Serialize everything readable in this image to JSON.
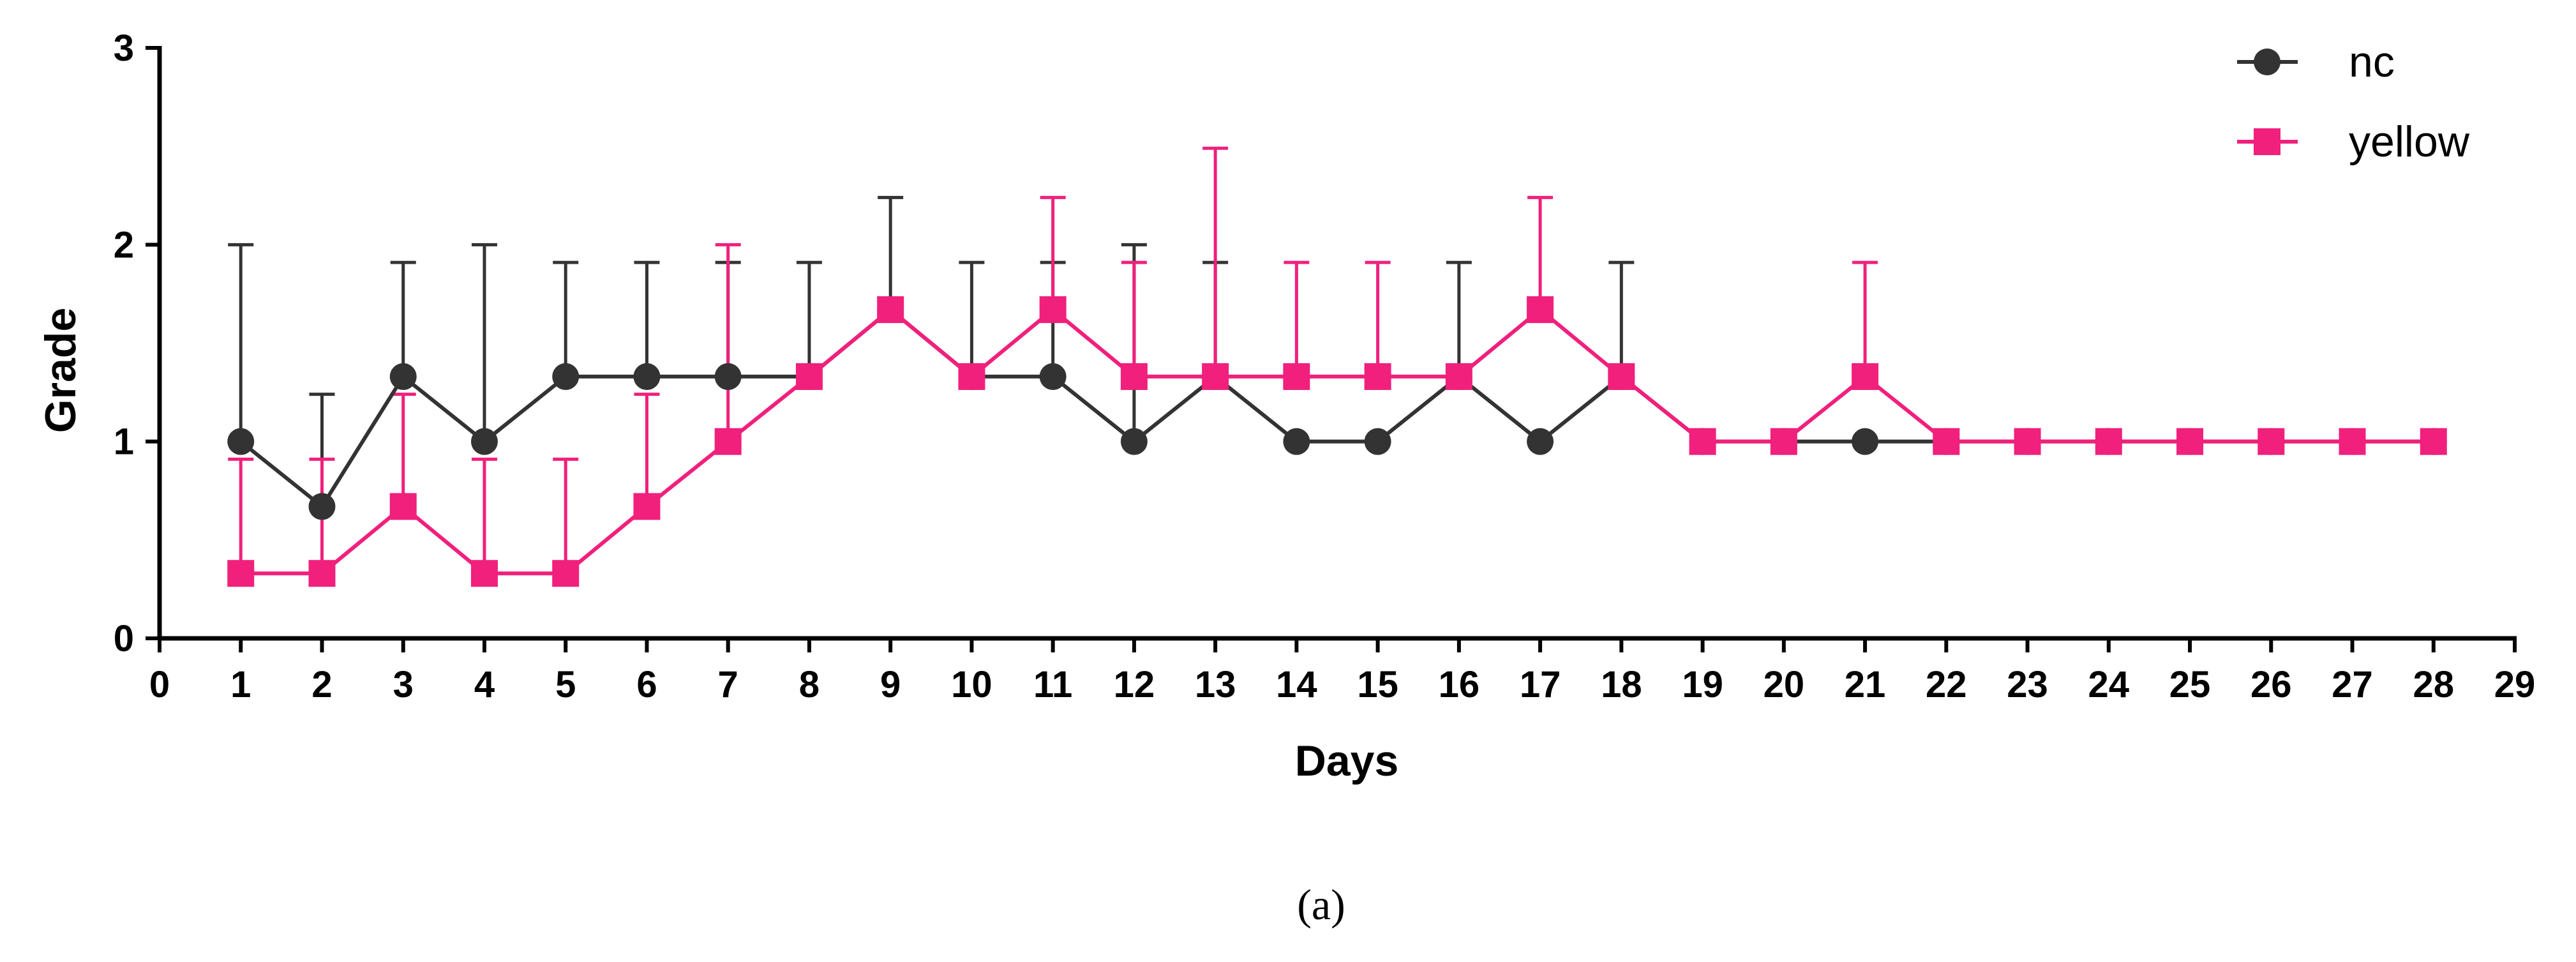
{
  "chart_data": {
    "type": "line",
    "title": "",
    "xlabel": "Days",
    "ylabel": "Grade",
    "xlim": [
      0,
      29
    ],
    "ylim": [
      0,
      3
    ],
    "x_ticks": [
      "0",
      "1",
      "2",
      "3",
      "4",
      "5",
      "6",
      "7",
      "8",
      "9",
      "10",
      "11",
      "12",
      "13",
      "14",
      "15",
      "16",
      "17",
      "18",
      "19",
      "20",
      "21",
      "22",
      "23",
      "24",
      "25",
      "26",
      "27",
      "28",
      "29"
    ],
    "y_ticks": [
      "0",
      "1",
      "2",
      "3"
    ],
    "grid": false,
    "legend_position": "top-right",
    "x": [
      1,
      2,
      3,
      4,
      5,
      6,
      7,
      8,
      9,
      10,
      11,
      12,
      13,
      14,
      15,
      16,
      17,
      18,
      19,
      20,
      21,
      22,
      23,
      24,
      25,
      26,
      27,
      28
    ],
    "series": [
      {
        "name": "nc",
        "color": "#333333",
        "marker": "circle",
        "values": [
          1.0,
          0.67,
          1.33,
          1.0,
          1.33,
          1.33,
          1.33,
          1.33,
          1.67,
          1.33,
          1.33,
          1.0,
          1.33,
          1.0,
          1.0,
          1.33,
          1.0,
          1.33,
          1.0,
          1.0,
          1.0,
          1.0,
          1.0,
          1.0,
          1.0,
          1.0,
          1.0,
          1.0
        ],
        "error_upper": [
          2.0,
          1.24,
          1.91,
          2.0,
          1.91,
          1.91,
          1.91,
          1.91,
          2.24,
          1.91,
          1.91,
          2.0,
          1.91,
          null,
          null,
          1.91,
          null,
          1.91,
          null,
          null,
          null,
          null,
          null,
          null,
          null,
          null,
          null,
          null
        ]
      },
      {
        "name": "yellow",
        "color": "#F0207C",
        "marker": "square",
        "values": [
          0.33,
          0.33,
          0.67,
          0.33,
          0.33,
          0.67,
          1.0,
          1.33,
          1.67,
          1.33,
          1.67,
          1.33,
          1.33,
          1.33,
          1.33,
          1.33,
          1.67,
          1.33,
          1.0,
          1.0,
          1.33,
          1.0,
          1.0,
          1.0,
          1.0,
          1.0,
          1.0,
          1.0
        ],
        "error_upper": [
          0.91,
          0.91,
          1.24,
          0.91,
          0.91,
          1.24,
          2.0,
          1.33,
          1.67,
          1.33,
          2.24,
          1.91,
          2.49,
          1.91,
          1.91,
          1.33,
          2.24,
          1.33,
          null,
          null,
          1.91,
          null,
          null,
          null,
          null,
          null,
          null,
          null
        ]
      }
    ],
    "caption": "(a)"
  }
}
